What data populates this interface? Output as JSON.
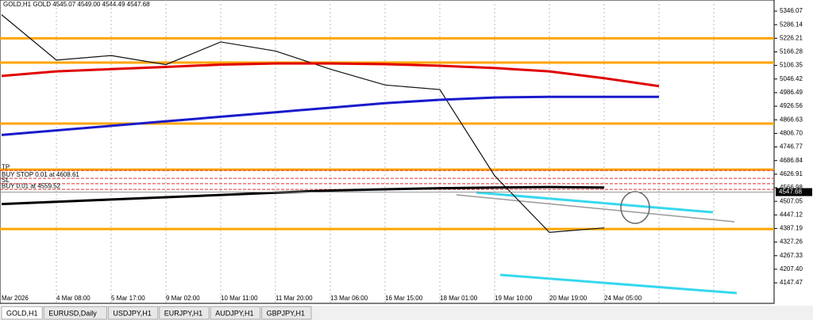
{
  "chart_data": {
    "type": "line",
    "header": "GOLD,H1  GOLD  4545.07 4549.00 4544.49 4547.68",
    "categories": [
      "Mar 2026",
      "4 Mar 08:00",
      "5 Mar 17:00",
      "9 Mar 02:00",
      "10 Mar 11:00",
      "11 Mar 20:00",
      "13 Mar 06:00",
      "16 Mar 15:00",
      "18 Mar 01:00",
      "19 Mar 10:00",
      "20 Mar 19:00",
      "24 Mar 05:00",
      null,
      null
    ],
    "series": [
      {
        "color": "#111111",
        "width": 1.2,
        "values": [
          5330,
          5130,
          5150,
          5110,
          5210,
          5170,
          5090,
          5020,
          5000,
          4620,
          4370,
          4390,
          null,
          null
        ]
      },
      {
        "color": "#e00000",
        "width": 3,
        "values": [
          5060,
          5080,
          5090,
          5100,
          5110,
          5115,
          5115,
          5112,
          5105,
          5095,
          5080,
          5050,
          5015,
          null
        ]
      },
      {
        "color": "#1a1acc",
        "width": 3,
        "values": [
          4800,
          4820,
          4840,
          4860,
          4880,
          4900,
          4920,
          4940,
          4955,
          4965,
          4968,
          4968,
          4968,
          null
        ]
      },
      {
        "color": "#000000",
        "width": 3,
        "values": [
          4495,
          4505,
          4515,
          4525,
          4535,
          4545,
          4555,
          4560,
          4565,
          4568,
          4570,
          4568,
          null,
          null
        ]
      }
    ],
    "levels": {
      "color": "#ffa500",
      "values": [
        5226,
        5119,
        4850,
        4647,
        4385
      ]
    },
    "orders": [
      {
        "label": "TP",
        "value": 4643
      },
      {
        "label": "BUY STOP 0.01 at 4608.61",
        "value": 4608.61
      },
      {
        "label": "SL",
        "value": 4585
      },
      {
        "label": "BUY 0.01 at 4559.52",
        "value": 4559.52
      }
    ],
    "current_price": 4547.68,
    "ylim": [
      4057,
      5395
    ],
    "yticks": [
      5346.07,
      5286.14,
      5226.21,
      5166.28,
      5106.35,
      5046.42,
      4986.49,
      4926.56,
      4866.63,
      {
        "value": 4806.7,
        "label": "4806.70"
      },
      4746.77,
      4686.84,
      4626.91,
      4566.98,
      4507.05,
      4447.12,
      4387.19,
      4327.26,
      4267.33,
      {
        "value": 4207.4,
        "label": "4207.40"
      },
      4147.47
    ],
    "tabs": [
      "GOLD,H1",
      "EURUSD,Daily",
      "USDJPY,H1",
      "EURJPY,H1",
      "AUDJPY,H1",
      "GBPJPY,H1"
    ]
  }
}
